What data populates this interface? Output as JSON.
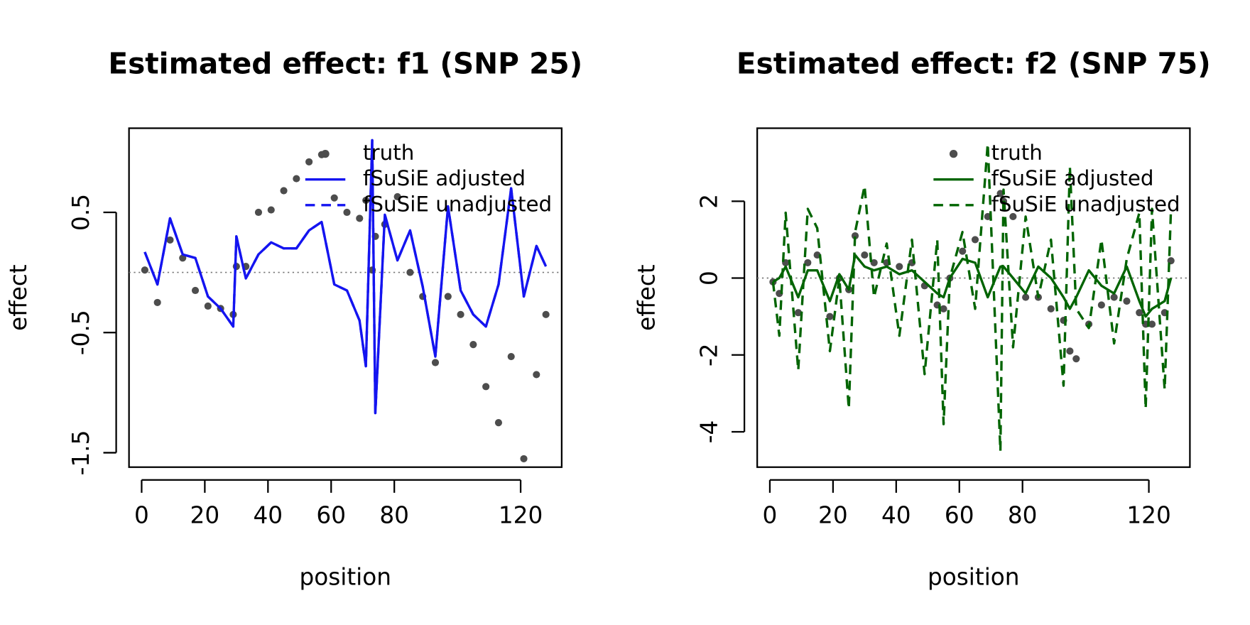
{
  "chart_data": [
    {
      "type": "line",
      "title": "Estimated effect: f1 (SNP 25)",
      "xlabel": "position",
      "ylabel": "effect",
      "x": [
        1,
        5,
        9,
        13,
        17,
        21,
        25,
        29,
        30,
        33,
        37,
        41,
        45,
        49,
        53,
        57,
        61,
        65,
        69,
        71,
        73,
        74,
        77,
        81,
        85,
        89,
        93,
        97,
        101,
        105,
        109,
        113,
        117,
        121,
        125,
        128
      ],
      "series": [
        {
          "name": "truth",
          "color": "#4d4d4d",
          "style": "points",
          "values": [
            0.02,
            -0.25,
            0.27,
            0.12,
            -0.15,
            -0.28,
            -0.3,
            -0.35,
            0.05,
            0.05,
            0.5,
            0.52,
            0.68,
            0.78,
            0.92,
            0.98,
            0.62,
            0.5,
            0.45,
            0.6,
            0.02,
            0.3,
            0.4,
            0.63,
            0.0,
            -0.2,
            -0.75,
            -0.2,
            -0.35,
            -0.6,
            -0.95,
            -1.25,
            -0.7,
            -1.55,
            -0.85,
            -0.35
          ]
        },
        {
          "name": "fSuSiE adjusted",
          "color": "#1414f0",
          "style": "solid",
          "values": [
            0.17,
            -0.1,
            0.45,
            0.15,
            0.12,
            -0.2,
            -0.3,
            -0.45,
            0.3,
            -0.05,
            0.15,
            0.25,
            0.2,
            0.2,
            0.35,
            0.42,
            -0.1,
            -0.15,
            -0.4,
            -0.78,
            1.1,
            -1.17,
            0.48,
            0.1,
            0.35,
            -0.12,
            -0.7,
            0.55,
            -0.15,
            -0.35,
            -0.45,
            -0.1,
            0.7,
            -0.2,
            0.22,
            0.05
          ]
        },
        {
          "name": "fSuSiE unadjusted",
          "color": "#1414f0",
          "style": "dashed",
          "values": [
            0.17,
            -0.1,
            0.45,
            0.15,
            0.12,
            -0.2,
            -0.3,
            -0.45,
            0.3,
            -0.05,
            0.15,
            0.25,
            0.2,
            0.2,
            0.35,
            0.42,
            -0.1,
            -0.15,
            -0.4,
            -0.78,
            1.1,
            -1.17,
            0.48,
            0.1,
            0.35,
            -0.12,
            -0.7,
            0.55,
            -0.15,
            -0.35,
            -0.45,
            -0.1,
            0.7,
            -0.2,
            0.22,
            0.05
          ]
        }
      ],
      "xlim": [
        -4,
        133
      ],
      "xticks": [
        0,
        20,
        40,
        60,
        80,
        120
      ],
      "ylim": [
        -1.62,
        1.2
      ],
      "yticks": [
        0.5,
        -0.5,
        -1.5
      ],
      "hline": 0,
      "legend": "top-right"
    },
    {
      "type": "line",
      "title": "Estimated effect: f2 (SNP 75)",
      "xlabel": "position",
      "ylabel": "effect",
      "x": [
        1,
        3,
        5,
        9,
        12,
        15,
        19,
        22,
        25,
        27,
        30,
        33,
        37,
        41,
        45,
        49,
        53,
        55,
        57,
        61,
        65,
        69,
        73,
        74,
        77,
        81,
        85,
        89,
        93,
        95,
        97,
        101,
        105,
        109,
        113,
        117,
        119,
        121,
        125,
        127
      ],
      "series": [
        {
          "name": "truth",
          "color": "#4d4d4d",
          "style": "points",
          "values": [
            -0.1,
            -0.4,
            0.4,
            -0.9,
            0.4,
            0.6,
            -1.0,
            0.0,
            -0.3,
            1.1,
            0.6,
            0.4,
            0.4,
            0.3,
            0.4,
            -0.2,
            -0.7,
            -0.8,
            0.0,
            0.7,
            1.0,
            1.6,
            2.2,
            2.0,
            1.6,
            -0.5,
            -0.5,
            -0.8,
            -1.1,
            -1.9,
            -2.1,
            -1.2,
            -0.7,
            -0.5,
            -0.6,
            -0.9,
            -1.2,
            -1.2,
            -0.9,
            0.45
          ]
        },
        {
          "name": "fSuSiE adjusted",
          "color": "#006400",
          "style": "solid",
          "values": [
            -0.1,
            0.0,
            0.3,
            -0.5,
            0.2,
            0.2,
            -0.6,
            0.1,
            -0.3,
            0.6,
            0.3,
            0.2,
            0.3,
            0.1,
            0.2,
            -0.1,
            -0.4,
            -0.5,
            0.0,
            0.5,
            0.4,
            -0.5,
            0.3,
            0.3,
            0.0,
            -0.4,
            0.3,
            0.0,
            -0.5,
            -0.8,
            -0.5,
            0.2,
            -0.2,
            -0.4,
            0.3,
            -0.6,
            -1.0,
            -0.8,
            -0.6,
            0.0
          ]
        },
        {
          "name": "fSuSiE unadjusted",
          "color": "#006400",
          "style": "dashed",
          "values": [
            -0.1,
            -1.5,
            1.7,
            -2.4,
            1.8,
            1.3,
            -1.9,
            0.0,
            -3.4,
            1.2,
            2.4,
            -0.5,
            0.9,
            -1.5,
            1.0,
            -2.5,
            1.0,
            -3.8,
            0.0,
            1.2,
            -0.8,
            3.5,
            -4.5,
            2.3,
            -1.8,
            1.6,
            -0.5,
            1.0,
            -2.8,
            2.9,
            -0.8,
            -1.3,
            1.0,
            -1.7,
            0.5,
            1.7,
            -3.4,
            1.8,
            -2.9,
            1.8
          ]
        }
      ],
      "xlim": [
        -4,
        133
      ],
      "xticks": [
        0,
        20,
        40,
        60,
        80,
        120
      ],
      "ylim": [
        -4.92,
        3.9
      ],
      "yticks": [
        2,
        0,
        -2,
        -4
      ],
      "hline": 0,
      "legend": "top-right"
    }
  ]
}
